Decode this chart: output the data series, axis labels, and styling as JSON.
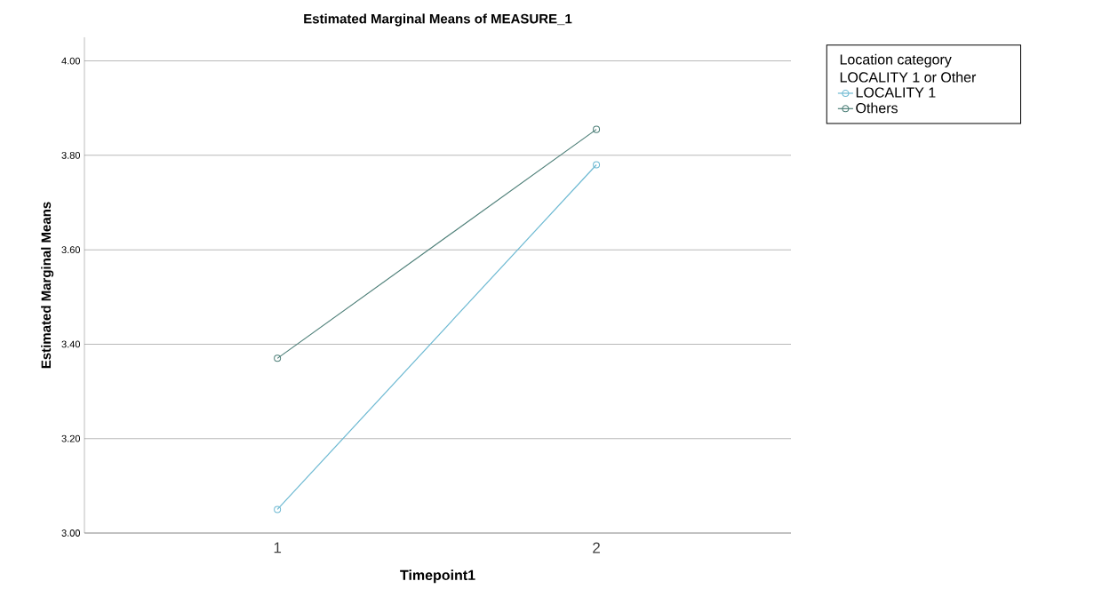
{
  "chart_data": {
    "type": "line",
    "title": "Estimated Marginal Means of MEASURE_1",
    "xlabel": "Timepoint1",
    "ylabel": "Estimated Marginal Means",
    "legend_title": "Location category LOCALITY 1 or Other",
    "categories": [
      "1",
      "2"
    ],
    "series": [
      {
        "name": "LOCALITY 1",
        "color": "#6db9d2",
        "values": [
          3.05,
          3.78
        ]
      },
      {
        "name": "Others",
        "color": "#4d7f78",
        "values": [
          3.37,
          3.855
        ]
      }
    ],
    "ylim": [
      3.0,
      4.05
    ],
    "yticks": [
      {
        "value": 3.0,
        "label": "3.00"
      },
      {
        "value": 3.2,
        "label": "3.20"
      },
      {
        "value": 3.4,
        "label": "3.40"
      },
      {
        "value": 3.6,
        "label": "3.60"
      },
      {
        "value": 3.8,
        "label": "3.80"
      },
      {
        "value": 4.0,
        "label": "4.00"
      }
    ],
    "grid": "y",
    "legend": "top right",
    "marker": "circle",
    "line_style": "solid"
  }
}
